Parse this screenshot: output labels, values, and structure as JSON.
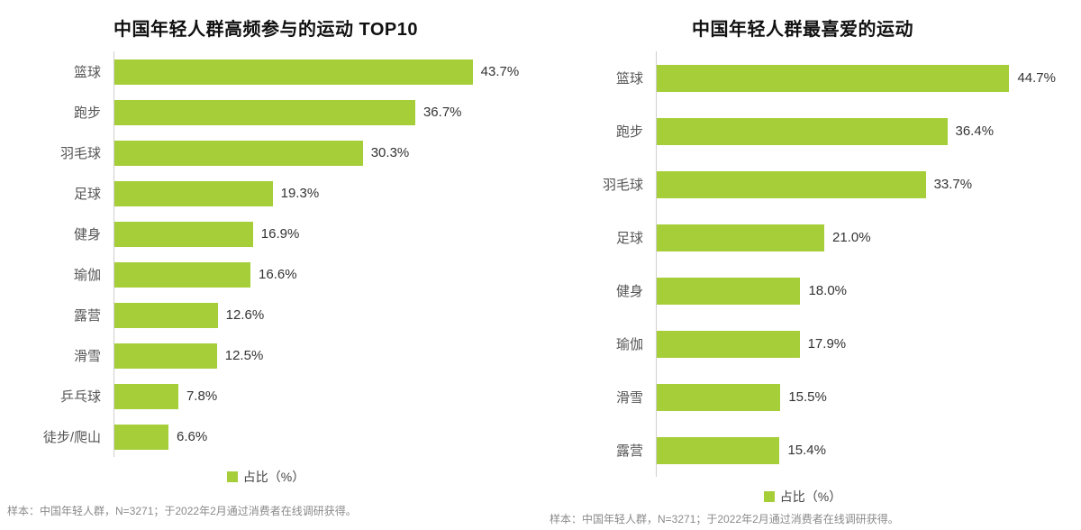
{
  "colors": {
    "bar": "#a5ce39",
    "axis": "#cfcfcf",
    "title": "#111111",
    "category_label": "#555555",
    "value_label": "#333333",
    "footnote": "#8a8a8a"
  },
  "chart_data": [
    {
      "type": "bar",
      "orientation": "horizontal",
      "title": "中国年轻人群高频参与的运动 TOP10",
      "categories": [
        "篮球",
        "跑步",
        "羽毛球",
        "足球",
        "健身",
        "瑜伽",
        "露营",
        "滑雪",
        "乒乓球",
        "徒步/爬山"
      ],
      "values": [
        43.7,
        36.7,
        30.3,
        19.3,
        16.9,
        16.6,
        12.6,
        12.5,
        7.8,
        6.6
      ],
      "value_labels": [
        "43.7%",
        "36.7%",
        "30.3%",
        "19.3%",
        "16.9%",
        "16.6%",
        "12.6%",
        "12.5%",
        "7.8%",
        "6.6%"
      ],
      "xlim": [
        0,
        50
      ],
      "grid": false,
      "legend": "占比（%）",
      "legend_position": "bottom",
      "footnote": "样本：中国年轻人群，N=3271；于2022年2月通过消费者在线调研获得。"
    },
    {
      "type": "bar",
      "orientation": "horizontal",
      "title": "中国年轻人群最喜爱的运动",
      "categories": [
        "篮球",
        "跑步",
        "羽毛球",
        "足球",
        "健身",
        "瑜伽",
        "滑雪",
        "露营"
      ],
      "values": [
        44.7,
        36.4,
        33.7,
        21.0,
        18.0,
        17.9,
        15.5,
        15.4
      ],
      "value_labels": [
        "44.7%",
        "36.4%",
        "33.7%",
        "21.0%",
        "18.0%",
        "17.9%",
        "15.5%",
        "15.4%"
      ],
      "xlim": [
        0,
        50
      ],
      "grid": false,
      "legend": "占比（%）",
      "legend_position": "bottom",
      "footnote": "样本：中国年轻人群，N=3271；于2022年2月通过消费者在线调研获得。"
    }
  ]
}
